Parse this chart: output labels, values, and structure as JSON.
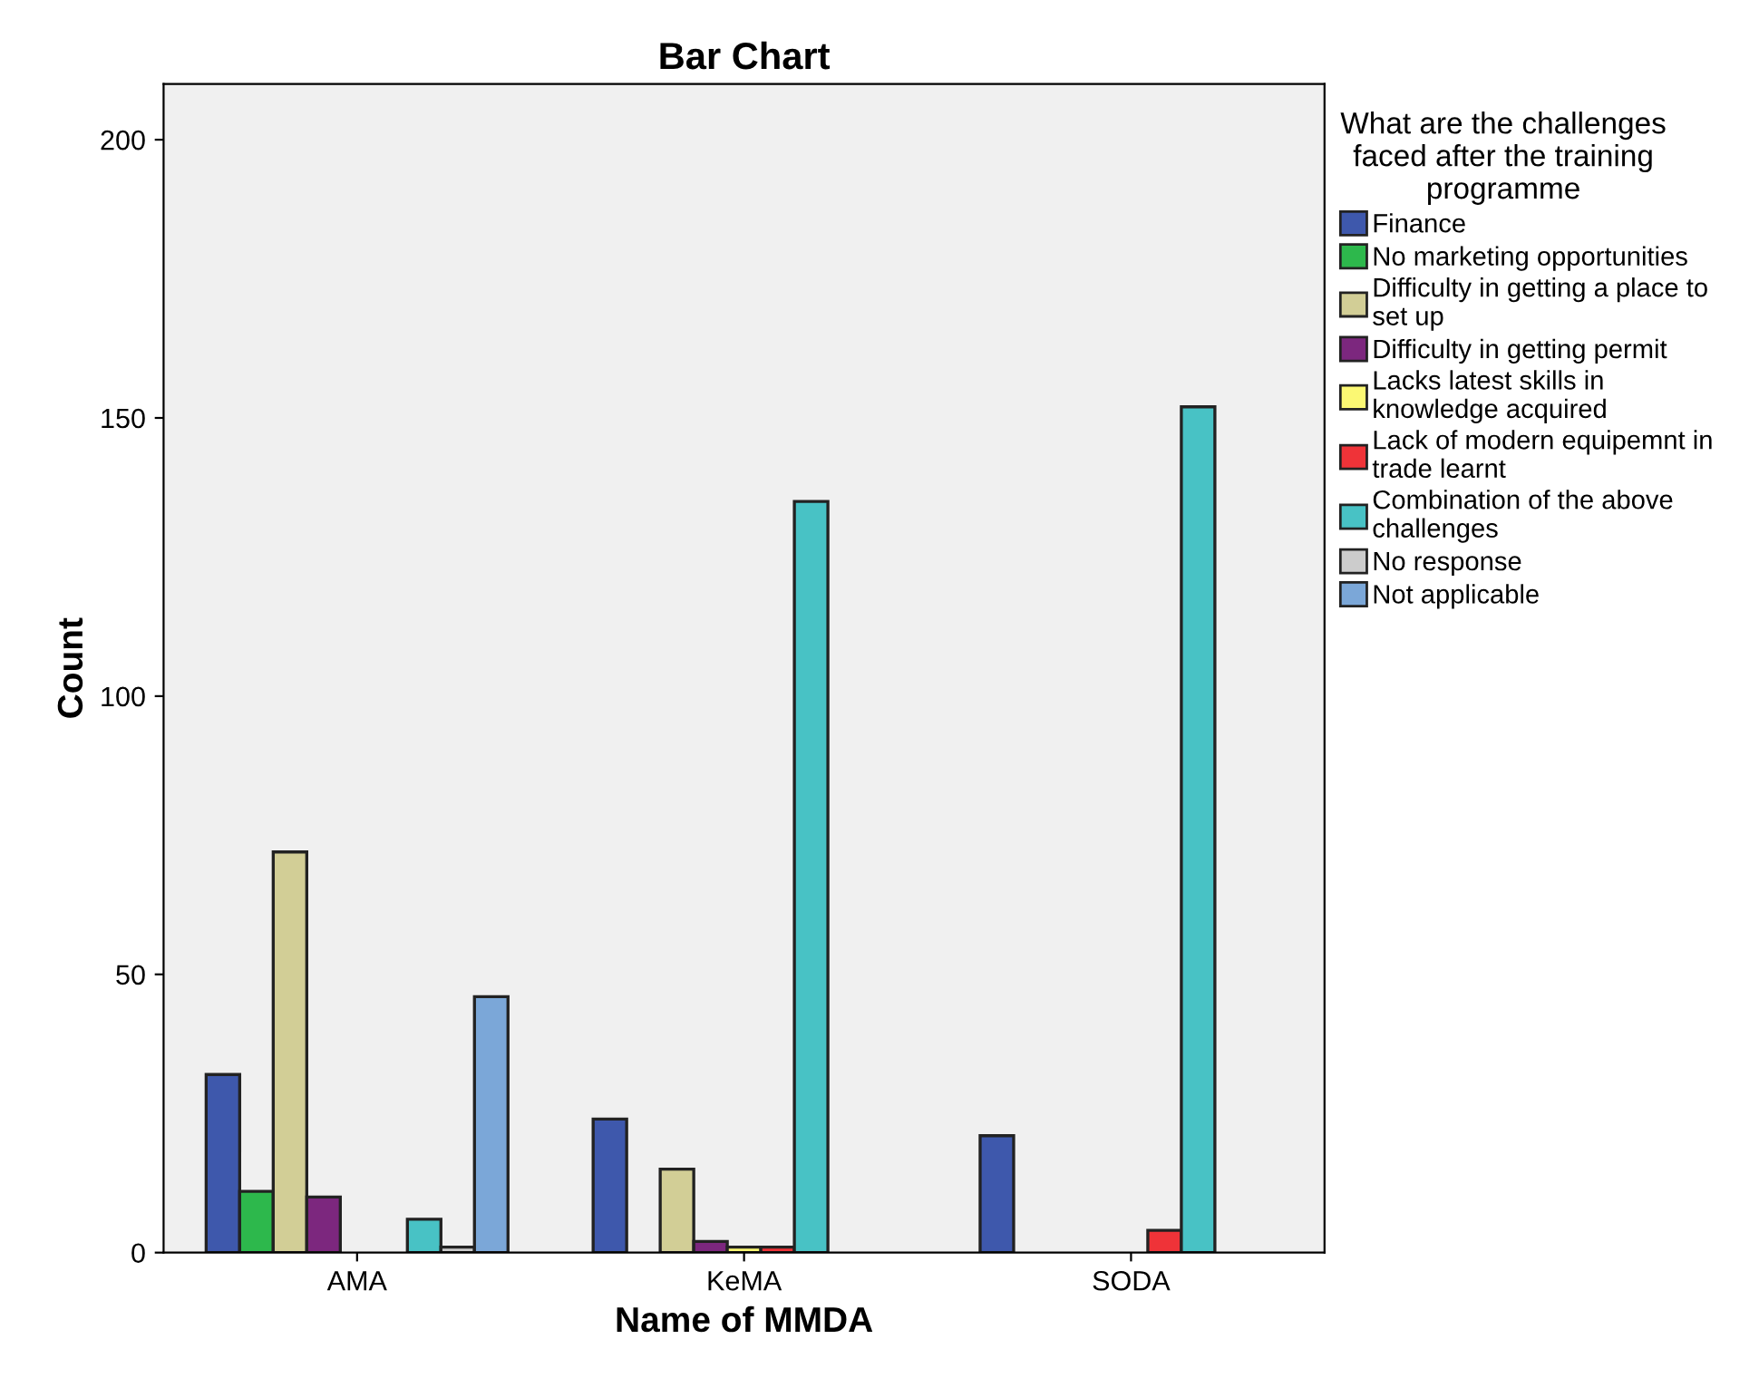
{
  "chart_data": {
    "type": "bar",
    "title": "Bar Chart",
    "xlabel": "Name of MMDA",
    "ylabel": "Count",
    "legend_title": "What are the challenges\nfaced after the training\nprogramme",
    "categories": [
      "AMA",
      "KeMA",
      "SODA"
    ],
    "series": [
      {
        "name": "Finance",
        "color": "#3e58ac",
        "values": [
          32,
          24,
          21
        ]
      },
      {
        "name": "No marketing opportunities",
        "color": "#2db84c",
        "values": [
          11,
          null,
          null
        ]
      },
      {
        "name": "Difficulty in getting a place to\nset up",
        "color": "#d2ce96",
        "values": [
          72,
          15,
          null
        ]
      },
      {
        "name": "Difficulty in getting permit",
        "color": "#7c277e",
        "values": [
          10,
          2,
          null
        ]
      },
      {
        "name": "Lacks latest skills in\nknowledge acquired",
        "color": "#fbf873",
        "values": [
          null,
          1,
          null
        ]
      },
      {
        "name": "Lack of modern equipemnt in\ntrade learnt",
        "color": "#ef3338",
        "values": [
          null,
          1,
          4
        ]
      },
      {
        "name": "Combination of the above\nchallenges",
        "color": "#48c2c5",
        "values": [
          6,
          135,
          152
        ]
      },
      {
        "name": "No response",
        "color": "#cccccc",
        "values": [
          1,
          null,
          null
        ]
      },
      {
        "name": "Not applicable",
        "color": "#7ba7d8",
        "values": [
          46,
          null,
          null
        ]
      }
    ],
    "ylim": [
      0,
      210
    ],
    "yticks": [
      0,
      50,
      100,
      150,
      200
    ],
    "grid": false,
    "legend": "right"
  }
}
